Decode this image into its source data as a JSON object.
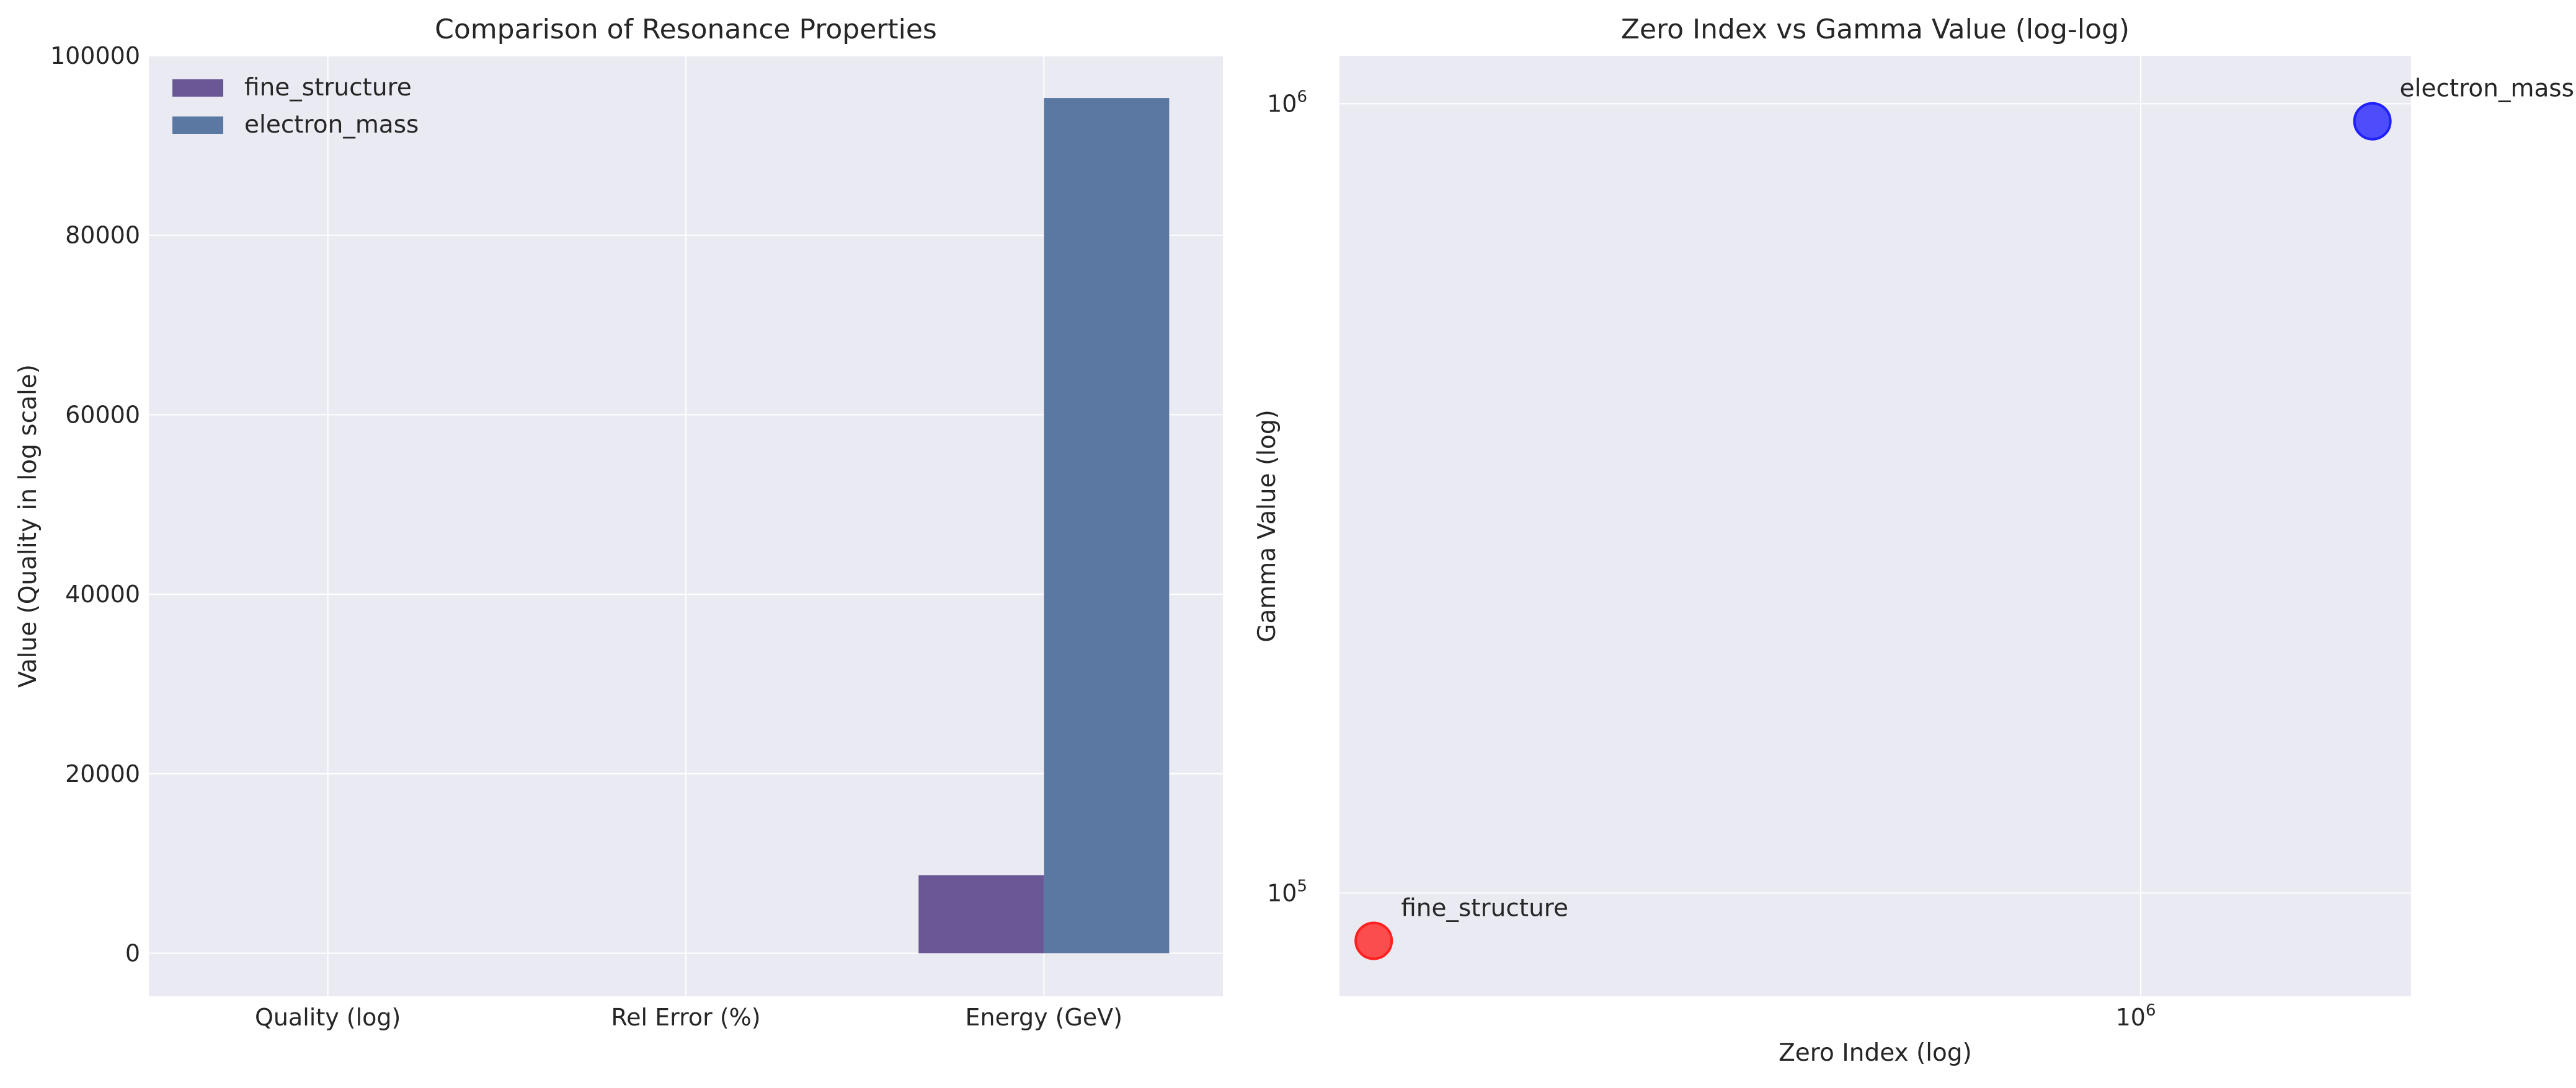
{
  "chart_data": [
    {
      "type": "bar",
      "title": "Comparison of Resonance Properties",
      "xlabel": "",
      "ylabel": "Value (Quality in log scale)",
      "categories": [
        "Quality (log)",
        "Rel Error (%)",
        "Energy (GeV)"
      ],
      "ylim": [
        -4800,
        100000
      ],
      "yticks": [
        0,
        20000,
        40000,
        60000,
        80000,
        100000
      ],
      "ytick_labels": [
        "0",
        "20000",
        "40000",
        "60000",
        "80000",
        "100000"
      ],
      "grid": true,
      "legend_position": "top-left",
      "series": [
        {
          "name": "fine_structure",
          "color": "#6a5896",
          "values": [
            0,
            0,
            8700
          ]
        },
        {
          "name": "electron_mass",
          "color": "#5b78a3",
          "values": [
            0,
            0,
            95300
          ]
        }
      ]
    },
    {
      "type": "scatter",
      "title": "Zero Index vs Gamma Value (log-log)",
      "xlabel": "Zero Index (log)",
      "ylabel": "Gamma Value (log)",
      "xscale": "log",
      "yscale": "log",
      "xlim": [
        235000,
        1630000
      ],
      "ylim": [
        74000,
        1150000
      ],
      "xticks": [
        {
          "value": 1000000,
          "base": "10",
          "exp": "6"
        }
      ],
      "yticks": [
        {
          "value": 100000,
          "base": "10",
          "exp": "5"
        },
        {
          "value": 1000000,
          "base": "10",
          "exp": "6"
        }
      ],
      "grid": true,
      "points": [
        {
          "label": "fine_structure",
          "x": 250000,
          "y": 87000,
          "color": "#ff2020"
        },
        {
          "label": "electron_mass",
          "x": 1520000,
          "y": 950000,
          "color": "#2020ff"
        }
      ]
    }
  ]
}
